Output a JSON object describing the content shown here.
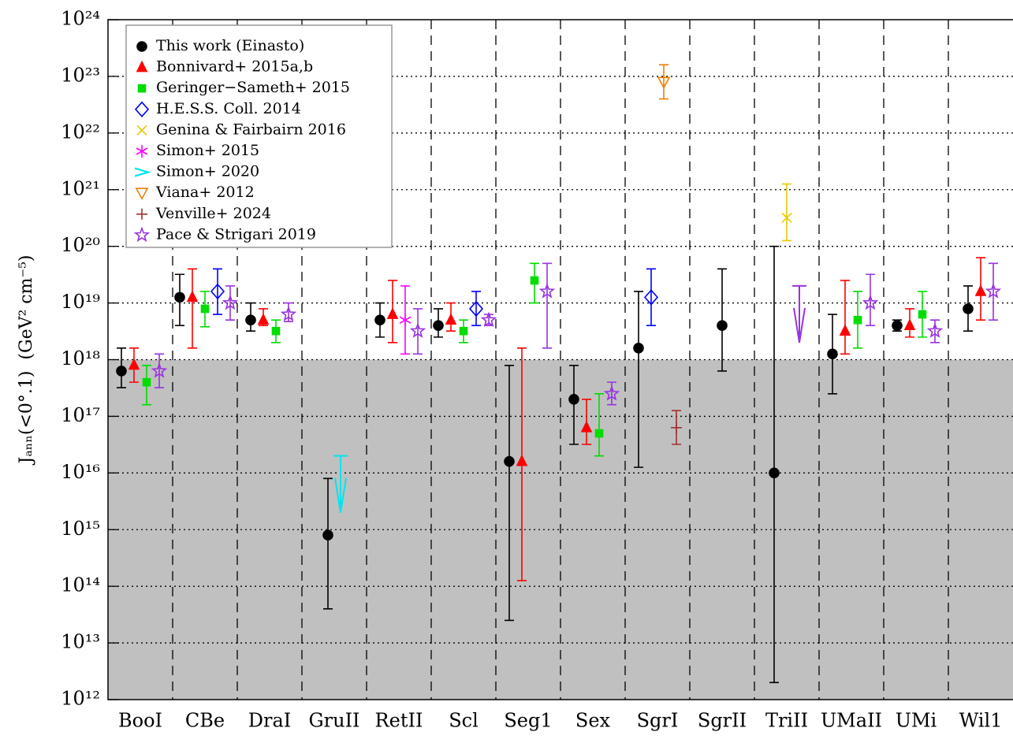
{
  "chart_data": {
    "type": "errorbar",
    "y_label": "Jₐₙₙ(<0°.1)  (GeV² cm⁻⁵)",
    "categories": [
      "BooI",
      "CBe",
      "DraI",
      "GruII",
      "RetII",
      "Scl",
      "Seg1",
      "Sex",
      "SgrI",
      "SgrII",
      "TriII",
      "UMaII",
      "UMi",
      "Wil1"
    ],
    "log_y": true,
    "ylim": [
      1000000000000.0,
      1e+24
    ],
    "yticks": [
      {
        "value": 1000000000000.0,
        "label": "10¹²"
      },
      {
        "value": 10000000000000.0,
        "label": "10¹³"
      },
      {
        "value": 100000000000000.0,
        "label": "10¹⁴"
      },
      {
        "value": 1000000000000000.0,
        "label": "10¹⁵"
      },
      {
        "value": 1e+16,
        "label": "10¹⁶"
      },
      {
        "value": 1e+17,
        "label": "10¹⁷"
      },
      {
        "value": 1e+18,
        "label": "10¹⁸"
      },
      {
        "value": 1e+19,
        "label": "10¹⁹"
      },
      {
        "value": 1e+20,
        "label": "10²⁰"
      },
      {
        "value": 1e+21,
        "label": "10²¹"
      },
      {
        "value": 1e+22,
        "label": "10²²"
      },
      {
        "value": 1e+23,
        "label": "10²³"
      },
      {
        "value": 1e+24,
        "label": "10²⁴"
      }
    ],
    "grid": true,
    "shaded_below": 1e+18,
    "shade_color": "#c0c0c0",
    "legend": "upper left",
    "series": [
      {
        "name": "This work (Einasto)",
        "color": "#000000",
        "marker": "circle",
        "values": [
          6.3e+17,
          1.26e+19,
          5e+18,
          800000000000000.0,
          5e+18,
          4e+18,
          1.6e+16,
          2e+17,
          1.6e+18,
          4e+18,
          1e+16,
          1.26e+18,
          4e+18,
          7.9e+18
        ],
        "upper": [
          1.6e+18,
          3.2e+19,
          1e+19,
          8000000000000000.0,
          1e+19,
          7.9e+18,
          7.9e+17,
          7.9e+17,
          1.6e+19,
          4e+19,
          1e+20,
          6.3e+18,
          5e+18,
          2e+19
        ],
        "lower": [
          3.2e+17,
          4e+18,
          3.2e+18,
          40000000000000.0,
          2.5e+18,
          2.5e+18,
          25000000000000.0,
          3.2e+16,
          1.26e+16,
          6.3e+17,
          2000000000000.0,
          2.5e+17,
          3.2e+18,
          3.2e+18
        ]
      },
      {
        "name": "Bonnivard+ 2015a,b",
        "color": "#ff0000",
        "marker": "triangle-up",
        "values": [
          8e+17,
          1.26e+19,
          5e+18,
          null,
          6.3e+18,
          5e+18,
          1.6e+16,
          6.3e+16,
          null,
          null,
          null,
          3.2e+18,
          4e+18,
          1.6e+19
        ],
        "upper": [
          1.6e+18,
          4e+19,
          7.9e+18,
          null,
          2.5e+19,
          1e+19,
          1.6e+18,
          2e+17,
          null,
          null,
          null,
          2.5e+19,
          7.9e+18,
          6.3e+19
        ],
        "lower": [
          4e+17,
          1.6e+18,
          4e+18,
          null,
          2e+18,
          3.2e+18,
          126000000000000.0,
          3.2e+16,
          null,
          null,
          null,
          1.26e+18,
          2.5e+18,
          5e+18
        ]
      },
      {
        "name": "Geringer−Sameth+ 2015",
        "color": "#00dd00",
        "marker": "square",
        "values": [
          4e+17,
          7.9e+18,
          3.2e+18,
          null,
          null,
          3.2e+18,
          2.5e+19,
          5e+16,
          null,
          null,
          null,
          5e+18,
          6.3e+18,
          null
        ],
        "upper": [
          7.9e+17,
          1.6e+19,
          5e+18,
          null,
          null,
          5e+18,
          5e+19,
          2.5e+17,
          null,
          null,
          null,
          1.6e+19,
          1.6e+19,
          null
        ],
        "lower": [
          1.6e+17,
          3.8e+18,
          2e+18,
          null,
          null,
          2e+18,
          1e+19,
          2e+16,
          null,
          null,
          null,
          1.6e+18,
          2.5e+18,
          null
        ]
      },
      {
        "name": "H.E.S.S. Coll. 2014",
        "color": "#0000ff",
        "marker": "diamond-open",
        "values": [
          null,
          1.6e+19,
          null,
          null,
          null,
          7.9e+18,
          null,
          null,
          1.26e+19,
          null,
          null,
          null,
          null,
          null
        ],
        "upper": [
          null,
          4e+19,
          null,
          null,
          null,
          1.6e+19,
          null,
          null,
          4e+19,
          null,
          null,
          null,
          null,
          null
        ],
        "lower": [
          null,
          6.3e+18,
          null,
          null,
          null,
          4e+18,
          null,
          null,
          4e+18,
          null,
          null,
          null,
          null,
          null
        ]
      },
      {
        "name": "Genina & Fairbairn 2016",
        "color": "#e8c800",
        "marker": "x",
        "values": [
          null,
          null,
          null,
          null,
          null,
          null,
          null,
          null,
          null,
          null,
          3.2e+20,
          null,
          null,
          null
        ],
        "upper": [
          null,
          null,
          null,
          null,
          null,
          null,
          null,
          null,
          null,
          null,
          1.26e+21,
          null,
          null,
          null
        ],
        "lower": [
          null,
          null,
          null,
          null,
          null,
          null,
          null,
          null,
          null,
          null,
          1.26e+20,
          null,
          null,
          null
        ]
      },
      {
        "name": "Simon+ 2015",
        "color": "#ff00ff",
        "marker": "asterisk",
        "values": [
          null,
          null,
          null,
          null,
          5e+18,
          null,
          null,
          null,
          null,
          null,
          null,
          null,
          null,
          null
        ],
        "upper": [
          null,
          null,
          null,
          null,
          2e+19,
          null,
          null,
          null,
          null,
          null,
          null,
          null,
          null,
          null
        ],
        "lower": [
          null,
          null,
          null,
          null,
          1.26e+18,
          null,
          null,
          null,
          null,
          null,
          null,
          null,
          null,
          null
        ]
      },
      {
        "name": "Simon+ 2020",
        "color": "#00e5ee",
        "marker": "arrow",
        "upper_limits": [
          null,
          null,
          null,
          2e+16,
          null,
          null,
          null,
          null,
          null,
          null,
          null,
          null,
          null,
          null
        ]
      },
      {
        "name": "Viana+ 2012",
        "color": "#f08000",
        "marker": "triangle-down-open",
        "values": [
          null,
          null,
          null,
          null,
          null,
          null,
          null,
          null,
          7.9e+22,
          null,
          null,
          null,
          null,
          null
        ],
        "upper": [
          null,
          null,
          null,
          null,
          null,
          null,
          null,
          null,
          1.6e+23,
          null,
          null,
          null,
          null,
          null
        ],
        "lower": [
          null,
          null,
          null,
          null,
          null,
          null,
          null,
          null,
          4e+22,
          null,
          null,
          null,
          null,
          null
        ]
      },
      {
        "name": "Venville+ 2024",
        "color": "#a03030",
        "marker": "plus",
        "values": [
          null,
          null,
          null,
          null,
          null,
          null,
          null,
          null,
          6.3e+16,
          null,
          null,
          null,
          null,
          null
        ],
        "upper": [
          null,
          null,
          null,
          null,
          null,
          null,
          null,
          null,
          1.26e+17,
          null,
          null,
          null,
          null,
          null
        ],
        "lower": [
          null,
          null,
          null,
          null,
          null,
          null,
          null,
          null,
          3.2e+16,
          null,
          null,
          null,
          null,
          null
        ]
      },
      {
        "name": "Pace & Strigari 2019",
        "color": "#9932e0",
        "marker": "star-open",
        "values": [
          6.3e+17,
          1e+19,
          6.3e+18,
          null,
          3.2e+18,
          5e+18,
          1.6e+19,
          2.5e+17,
          null,
          null,
          null,
          1e+19,
          3.2e+18,
          1.6e+19
        ],
        "upper": [
          1.26e+18,
          2e+19,
          1e+19,
          null,
          7.9e+18,
          6.3e+18,
          5e+19,
          4e+17,
          null,
          null,
          null,
          3.2e+19,
          5e+18,
          5e+19
        ],
        "lower": [
          3.2e+17,
          5e+18,
          4.7e+18,
          null,
          1.26e+18,
          4e+18,
          1.6e+18,
          1.6e+17,
          null,
          null,
          null,
          4e+18,
          2e+18,
          5e+18
        ],
        "upper_limits": [
          null,
          null,
          null,
          null,
          null,
          null,
          null,
          null,
          null,
          null,
          2e+19,
          null,
          null,
          null
        ]
      }
    ]
  }
}
